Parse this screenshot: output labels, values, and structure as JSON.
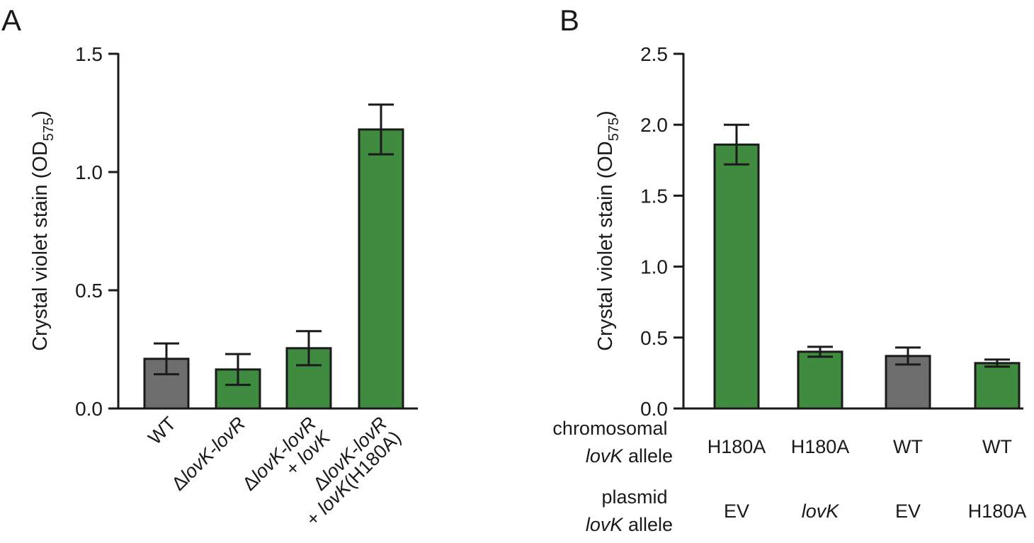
{
  "colors": {
    "green": "#3f8b40",
    "gray": "#6e6e6e",
    "ink": "#1a1a1a"
  },
  "chart_data": [
    {
      "type": "bar",
      "panel": "A",
      "ylabel_main": "Crystal violet stain (OD",
      "ylabel_sub": "575",
      "ylabel_close": ")",
      "ylim": [
        0,
        1.5
      ],
      "yticks": [
        {
          "value": 0.0,
          "label": "0.0"
        },
        {
          "value": 0.5,
          "label": "0.5"
        },
        {
          "value": 1.0,
          "label": "1.0"
        },
        {
          "value": 1.5,
          "label": "1.5"
        }
      ],
      "categories": [
        "WT",
        "ΔlovK-lovR",
        "ΔlovK-lovR + lovK",
        "ΔlovK-lovR + lovK(H180A)"
      ],
      "values": [
        0.21,
        0.165,
        0.255,
        1.18
      ],
      "errors": [
        0.065,
        0.065,
        0.072,
        0.105
      ],
      "bar_colors": [
        "gray",
        "green",
        "green",
        "green"
      ]
    },
    {
      "type": "bar",
      "panel": "B",
      "ylabel_main": "Crystal violet stain (OD",
      "ylabel_sub": "575",
      "ylabel_close": ")",
      "ylim": [
        0,
        2.5
      ],
      "yticks": [
        {
          "value": 0.0,
          "label": "0.0"
        },
        {
          "value": 0.5,
          "label": "0.5"
        },
        {
          "value": 1.0,
          "label": "1.0"
        },
        {
          "value": 1.5,
          "label": "1.5"
        },
        {
          "value": 2.0,
          "label": "2.0"
        },
        {
          "value": 2.5,
          "label": "2.5"
        }
      ],
      "values": [
        1.86,
        0.4,
        0.37,
        0.32
      ],
      "errors": [
        0.14,
        0.035,
        0.06,
        0.025
      ],
      "bar_colors": [
        "green",
        "green",
        "gray",
        "green"
      ],
      "chromosomal_label": {
        "line1": "chromosomal",
        "line2_italic": "lovK",
        "line2_rest": " allele"
      },
      "plasmid_label": {
        "line1": "plasmid",
        "line2_italic": "lovK",
        "line2_rest": " allele"
      },
      "chromosomal_alleles": [
        "H180A",
        "H180A",
        "WT",
        "WT"
      ],
      "plasmid_alleles": [
        "EV",
        "lovK",
        "EV",
        "H180A"
      ]
    }
  ]
}
